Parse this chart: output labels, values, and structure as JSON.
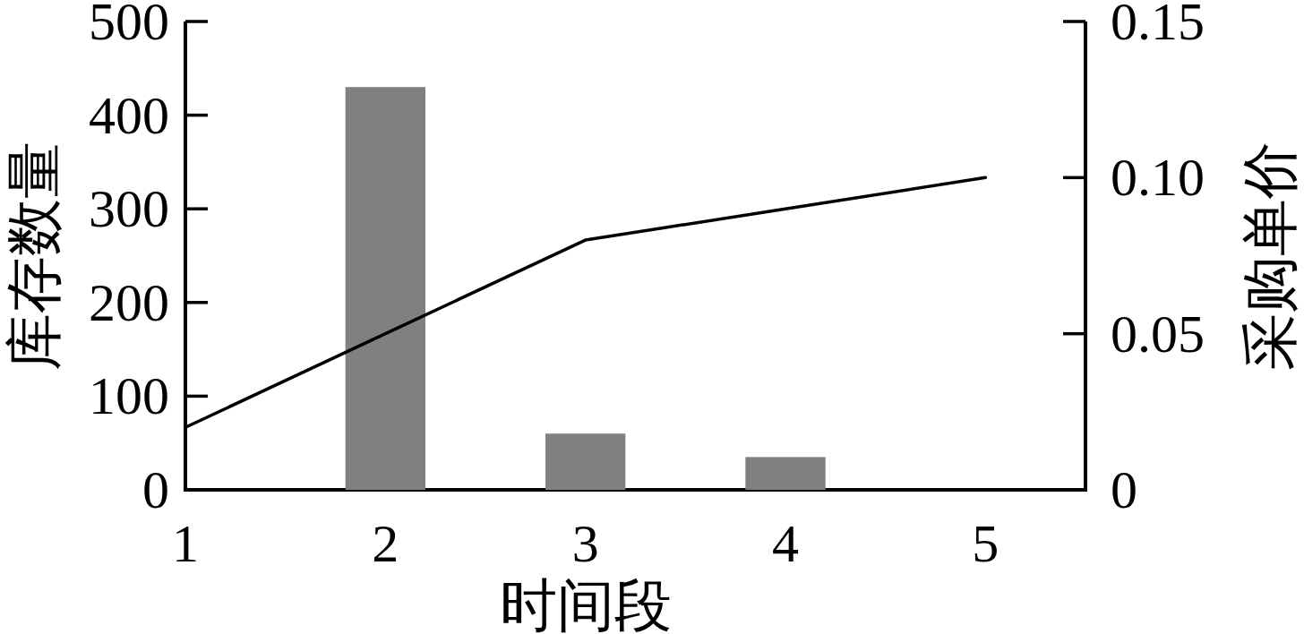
{
  "chart_data": {
    "type": "bar",
    "xlabel": "时间段",
    "ylabel": "库存数量",
    "y2label": "采购单价",
    "xlim": [
      1,
      5.5
    ],
    "xticks": [
      1,
      2,
      3,
      4,
      5
    ],
    "ylim": [
      0,
      500
    ],
    "yticks": [
      0,
      100,
      200,
      300,
      400,
      500
    ],
    "y2lim": [
      0,
      0.15
    ],
    "y2ticks": [
      0,
      0.05,
      {
        "value": 0.1,
        "label": "0.10"
      },
      0.15
    ],
    "series": [
      {
        "color": "#808080",
        "x": [
          2,
          3,
          4
        ],
        "values": [
          430,
          60,
          35
        ]
      },
      {
        "type": "line",
        "axis": "y2",
        "color": "#000000",
        "x": [
          1,
          2,
          3,
          4,
          5
        ],
        "values": [
          0.02,
          0.05,
          0.08,
          0.09,
          0.1
        ]
      }
    ]
  }
}
